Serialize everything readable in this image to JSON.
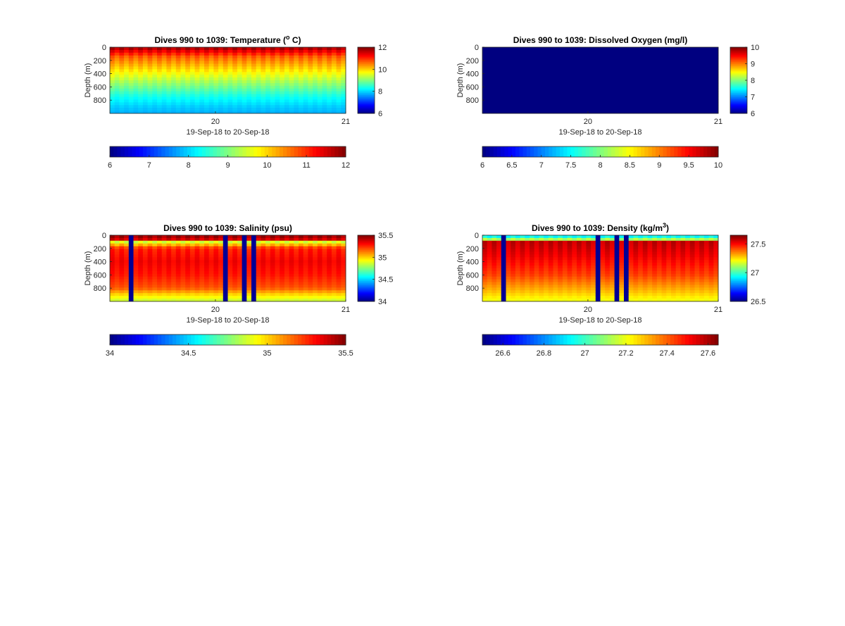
{
  "figure": {
    "background": "#ffffff",
    "colormap": "jet"
  },
  "chart_data": [
    {
      "type": "heatmap",
      "id": "temperature",
      "title": "Dives 990 to 1039: Temperature (",
      "title_sup": "o",
      "title_suffix": " C)",
      "xlabel": "19-Sep-18 to 20-Sep-18",
      "ylabel": "Depth (m)",
      "xlim": [
        19.19,
        21.0
      ],
      "ylim": [
        0,
        1000
      ],
      "x_ticks": [
        20,
        21
      ],
      "x_tick_labels": [
        "20",
        "21"
      ],
      "y_ticks": [
        0,
        200,
        400,
        600,
        800
      ],
      "y_tick_labels": [
        "0",
        "200",
        "400",
        "600",
        "800"
      ],
      "clim": [
        6,
        12
      ],
      "side_colorbar_ticks": [
        "6",
        "8",
        "10",
        "12"
      ],
      "bottom_colorbar_ticks": [
        "6",
        "7",
        "8",
        "9",
        "10",
        "11",
        "12"
      ],
      "dive_count": 50,
      "profile": [
        [
          0,
          12
        ],
        [
          50,
          11.6
        ],
        [
          150,
          10.8
        ],
        [
          300,
          10.2
        ],
        [
          450,
          9.6
        ],
        [
          600,
          9.0
        ],
        [
          750,
          8.4
        ],
        [
          900,
          8.0
        ],
        [
          1000,
          7.8
        ]
      ],
      "missing_dives": []
    },
    {
      "type": "heatmap",
      "id": "oxygen",
      "title": "Dives 990 to 1039: Dissolved Oxygen (mg/l)",
      "title_sup": "",
      "title_suffix": "",
      "xlabel": "19-Sep-18 to 20-Sep-18",
      "ylabel": "Depth (m)",
      "xlim": [
        19.19,
        21.0
      ],
      "ylim": [
        0,
        1000
      ],
      "x_ticks": [
        20,
        21
      ],
      "x_tick_labels": [
        "20",
        "21"
      ],
      "y_ticks": [
        0,
        200,
        400,
        600,
        800
      ],
      "y_tick_labels": [
        "0",
        "200",
        "400",
        "600",
        "800"
      ],
      "clim": [
        6,
        10
      ],
      "side_colorbar_ticks": [
        "6",
        "7",
        "8",
        "9",
        "10"
      ],
      "bottom_colorbar_ticks": [
        "6",
        "6.5",
        "7",
        "7.5",
        "8",
        "8.5",
        "9",
        "9.5",
        "10"
      ],
      "dive_count": 50,
      "profile": [
        [
          0,
          6
        ],
        [
          1000,
          6
        ]
      ],
      "missing_dives": []
    },
    {
      "type": "heatmap",
      "id": "salinity",
      "title": "Dives 990 to 1039: Salinity (psu)",
      "title_sup": "",
      "title_suffix": "",
      "xlabel": "19-Sep-18 to 20-Sep-18",
      "ylabel": "Depth (m)",
      "xlim": [
        19.19,
        21.0
      ],
      "ylim": [
        0,
        1000
      ],
      "x_ticks": [
        20,
        21
      ],
      "x_tick_labels": [
        "20",
        "21"
      ],
      "y_ticks": [
        0,
        200,
        400,
        600,
        800
      ],
      "y_tick_labels": [
        "0",
        "200",
        "400",
        "600",
        "800"
      ],
      "clim": [
        34,
        35.5
      ],
      "side_colorbar_ticks": [
        "34",
        "34.5",
        "35",
        "35.5"
      ],
      "bottom_colorbar_ticks": [
        "34",
        "34.5",
        "35",
        "35.5"
      ],
      "dive_count": 50,
      "profile": [
        [
          0,
          35.5
        ],
        [
          60,
          35.45
        ],
        [
          100,
          34.9
        ],
        [
          200,
          35.3
        ],
        [
          400,
          35.35
        ],
        [
          600,
          35.3
        ],
        [
          800,
          35.2
        ],
        [
          900,
          35.0
        ],
        [
          1000,
          34.85
        ]
      ],
      "missing_dives": [
        4,
        24,
        28,
        30
      ]
    },
    {
      "type": "heatmap",
      "id": "density",
      "title": "Dives 990 to 1039: Density (kg/m",
      "title_sup": "3",
      "title_suffix": ")",
      "xlabel": "19-Sep-18 to 20-Sep-18",
      "ylabel": "Depth (m)",
      "xlim": [
        19.19,
        21.0
      ],
      "ylim": [
        0,
        1000
      ],
      "x_ticks": [
        20,
        21
      ],
      "x_tick_labels": [
        "20",
        "21"
      ],
      "y_ticks": [
        0,
        200,
        400,
        600,
        800
      ],
      "y_tick_labels": [
        "0",
        "200",
        "400",
        "600",
        "800"
      ],
      "clim": [
        26.5,
        27.65
      ],
      "side_colorbar_ticks": [
        "26.5",
        "27",
        "27.5"
      ],
      "bottom_colorbar_ticks": [
        "26.6",
        "26.8",
        "27",
        "27.2",
        "27.4",
        "27.6"
      ],
      "dive_count": 50,
      "profile": [
        [
          0,
          26.95
        ],
        [
          50,
          27.0
        ],
        [
          100,
          27.6
        ],
        [
          300,
          27.55
        ],
        [
          600,
          27.45
        ],
        [
          850,
          27.3
        ],
        [
          1000,
          27.2
        ]
      ],
      "missing_dives": [
        4,
        24,
        28,
        30
      ]
    }
  ]
}
